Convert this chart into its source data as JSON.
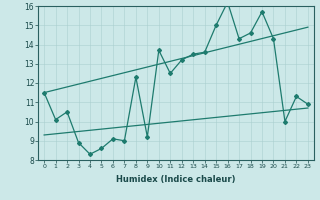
{
  "title": "",
  "xlabel": "Humidex (Indice chaleur)",
  "xlim": [
    -0.5,
    23.5
  ],
  "ylim": [
    8,
    16
  ],
  "xticks": [
    0,
    1,
    2,
    3,
    4,
    5,
    6,
    7,
    8,
    9,
    10,
    11,
    12,
    13,
    14,
    15,
    16,
    17,
    18,
    19,
    20,
    21,
    22,
    23
  ],
  "yticks": [
    8,
    9,
    10,
    11,
    12,
    13,
    14,
    15,
    16
  ],
  "background_color": "#cce8e8",
  "line_color": "#1e7b6e",
  "grid_color": "#aacfcf",
  "main_x": [
    0,
    1,
    2,
    3,
    4,
    5,
    6,
    7,
    8,
    9,
    10,
    11,
    12,
    13,
    14,
    15,
    16,
    17,
    18,
    19,
    20,
    21,
    22,
    23
  ],
  "main_y": [
    11.5,
    10.1,
    10.5,
    8.9,
    8.3,
    8.6,
    9.1,
    9.0,
    12.3,
    9.2,
    13.7,
    12.5,
    13.2,
    13.5,
    13.6,
    15.0,
    16.2,
    14.3,
    14.6,
    15.7,
    14.3,
    10.0,
    11.3,
    10.9
  ],
  "upper_trend_x": [
    0,
    23
  ],
  "upper_trend_y": [
    11.5,
    14.9
  ],
  "lower_trend_x": [
    0,
    23
  ],
  "lower_trend_y": [
    9.3,
    10.7
  ],
  "figsize": [
    3.2,
    2.0
  ],
  "dpi": 100
}
